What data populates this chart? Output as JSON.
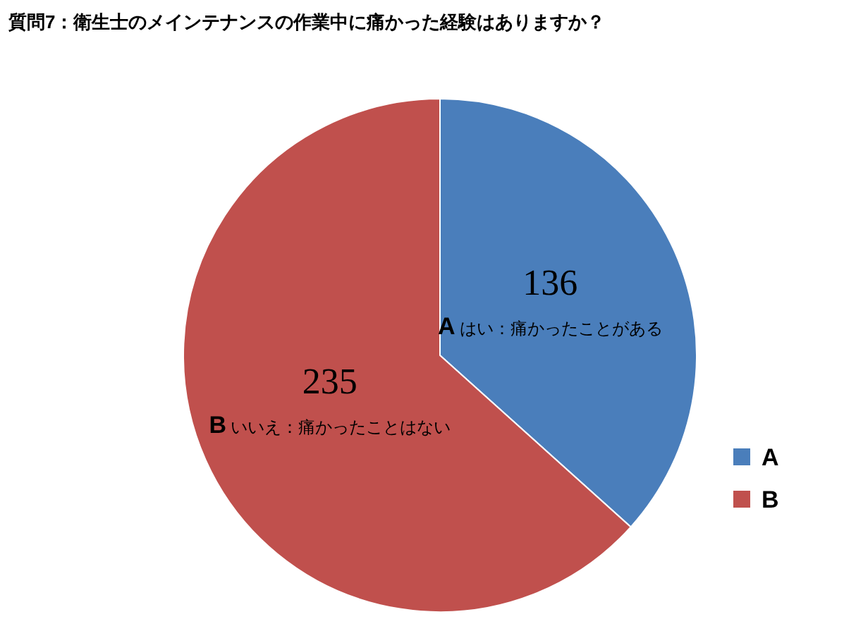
{
  "chart_data": {
    "type": "pie",
    "title": "質問7：衛生士のメインテナンスの作業中に痛かった経験はありますか？",
    "categories": [
      "A",
      "B"
    ],
    "values": [
      136,
      235
    ],
    "colors": [
      "#4a7ebb",
      "#c0504d"
    ],
    "data_labels": true,
    "annotations": [
      {
        "text": "はい：痛かったことがある",
        "x": "A"
      },
      {
        "text": "いいえ：痛かったことはない",
        "x": "B"
      }
    ],
    "legend": "right"
  }
}
